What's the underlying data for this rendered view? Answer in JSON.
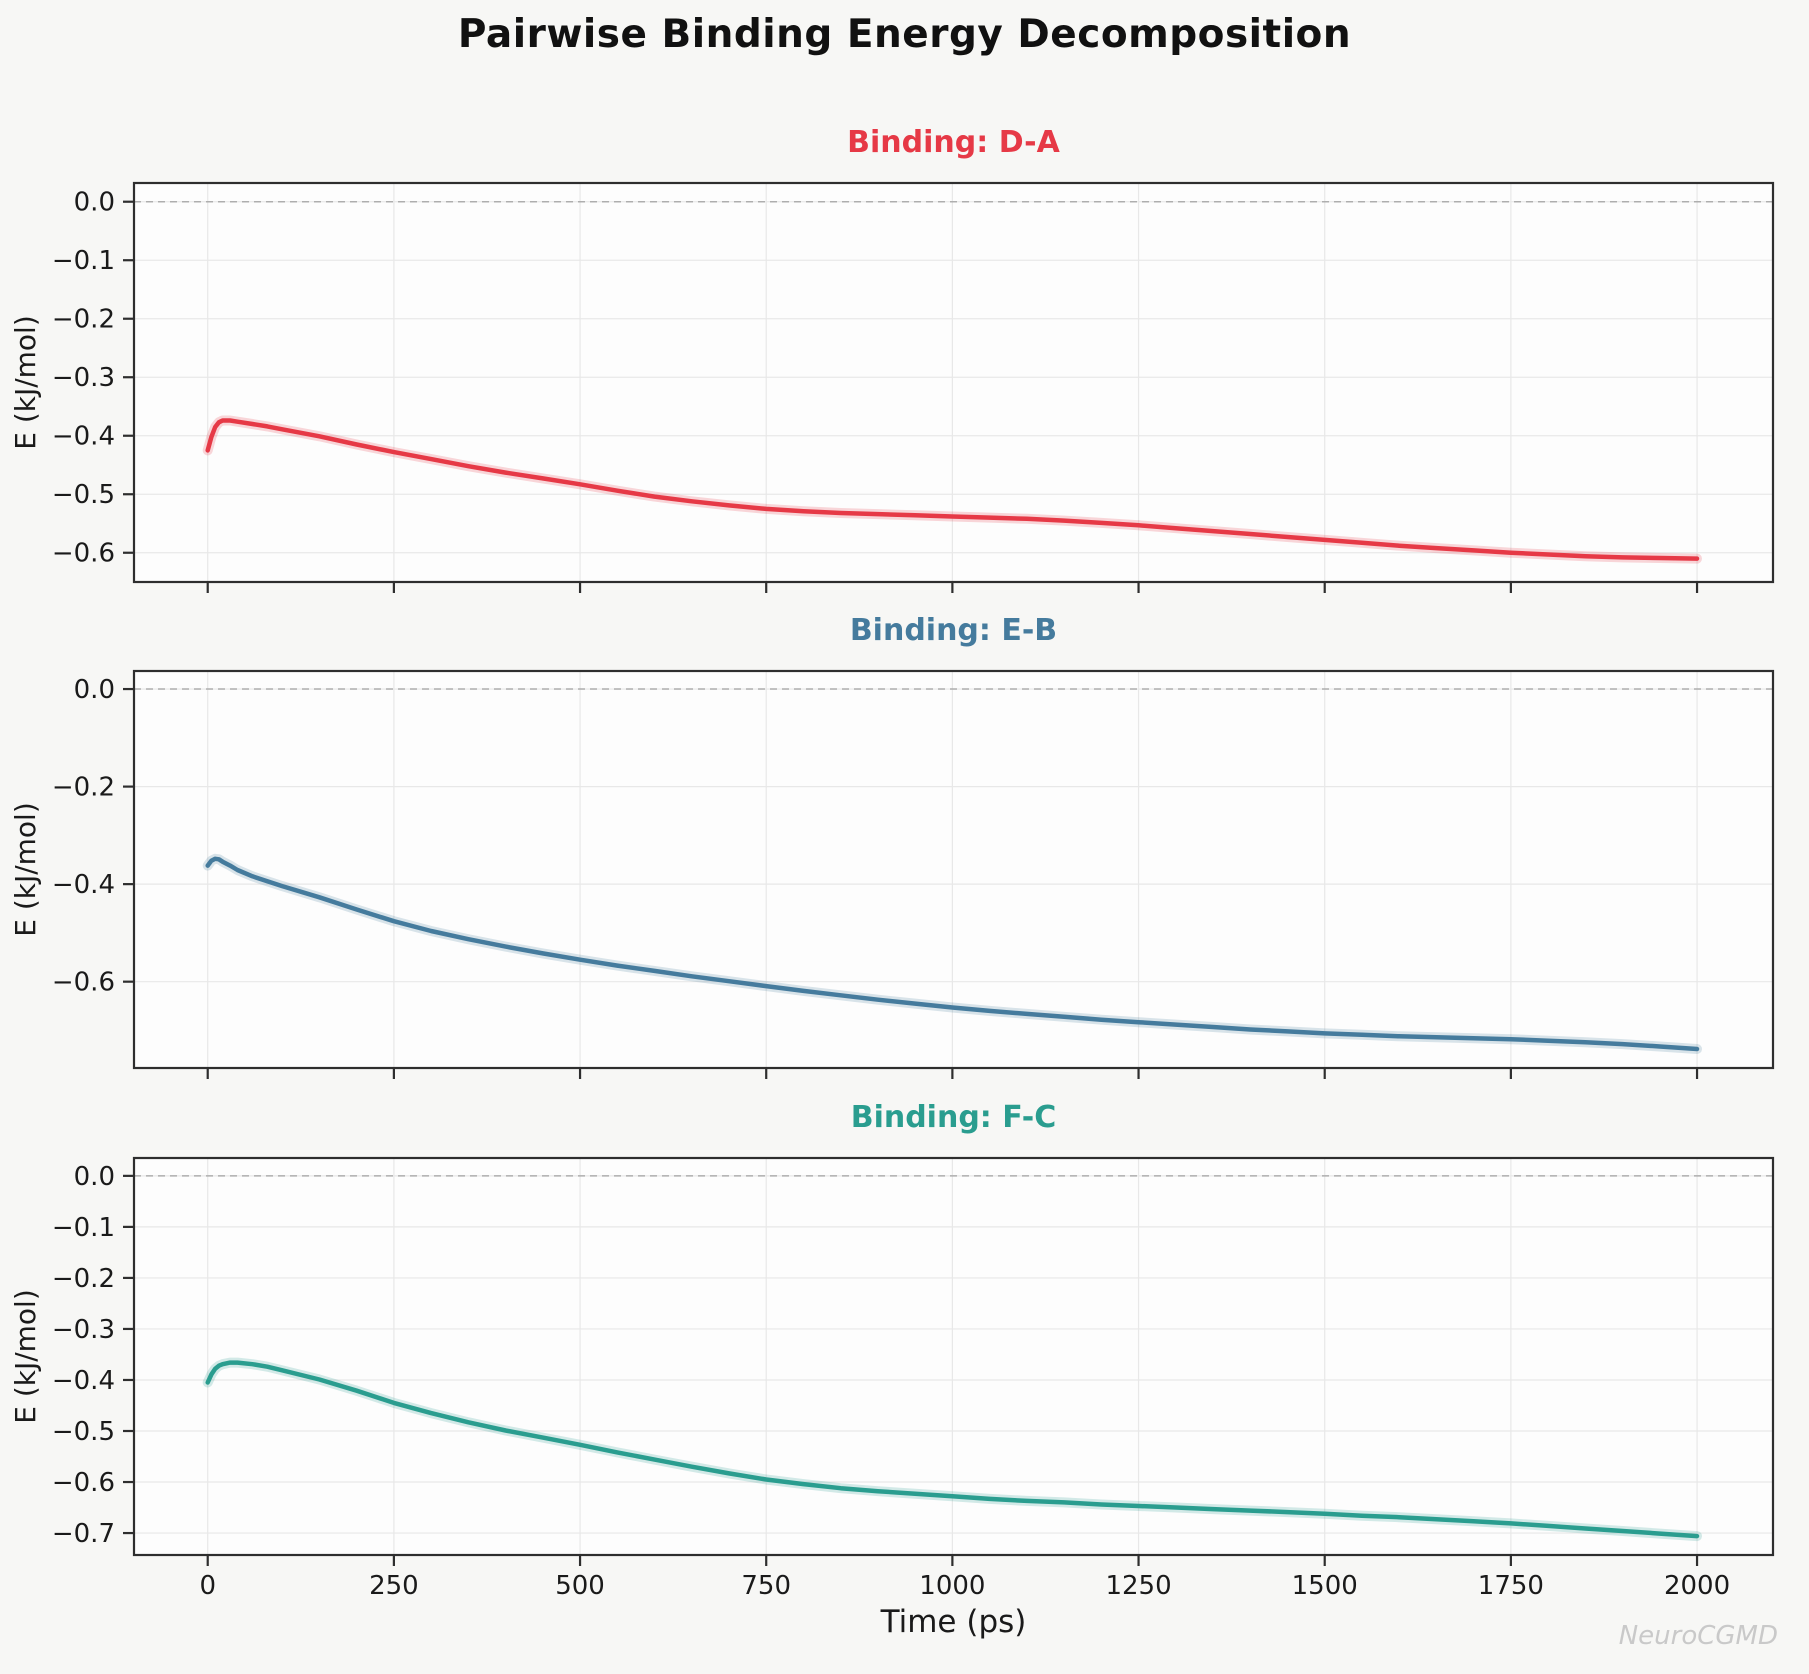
{
  "figure": {
    "title": "Pairwise Binding Energy Decomposition",
    "watermark": "NeuroCGMD",
    "colors": {
      "background": "#f7f7f5",
      "axes_background": "#fdfdfd",
      "grid": "#e8e8e8",
      "spine": "#2e2e2e",
      "zero_line": "#aeaeae",
      "text": "#1a1a1a",
      "watermark": "#c9c9c9"
    }
  },
  "chart_data": {
    "type": "line",
    "xlabel": "Time (ps)",
    "x_ticks": [
      0,
      250,
      500,
      750,
      1000,
      1250,
      1500,
      1750,
      2000
    ],
    "xlim": [
      -99,
      2102
    ],
    "grid": true,
    "legend": "none",
    "zero_reference_line": 0.0,
    "charts": [
      {
        "title": "Binding: D-A",
        "line_color": "#e63946",
        "ylabel": "E (kJ/mol)",
        "ylim": [
          -0.65,
          0.032
        ],
        "y_ticks": [
          0.0,
          -0.1,
          -0.2,
          -0.3,
          -0.4,
          -0.5,
          -0.6
        ],
        "x": [
          0,
          5,
          10,
          15,
          20,
          30,
          40,
          60,
          80,
          100,
          150,
          200,
          250,
          300,
          350,
          400,
          450,
          500,
          550,
          600,
          650,
          700,
          750,
          800,
          850,
          900,
          950,
          1000,
          1050,
          1100,
          1150,
          1200,
          1250,
          1300,
          1350,
          1400,
          1450,
          1500,
          1550,
          1600,
          1650,
          1700,
          1750,
          1800,
          1850,
          1900,
          1950,
          2000
        ],
        "y": [
          -0.425,
          -0.402,
          -0.385,
          -0.377,
          -0.374,
          -0.374,
          -0.376,
          -0.38,
          -0.384,
          -0.389,
          -0.401,
          -0.415,
          -0.428,
          -0.44,
          -0.452,
          -0.463,
          -0.473,
          -0.483,
          -0.494,
          -0.504,
          -0.512,
          -0.519,
          -0.525,
          -0.529,
          -0.532,
          -0.534,
          -0.536,
          -0.538,
          -0.54,
          -0.542,
          -0.545,
          -0.549,
          -0.553,
          -0.558,
          -0.563,
          -0.568,
          -0.573,
          -0.578,
          -0.583,
          -0.588,
          -0.592,
          -0.596,
          -0.6,
          -0.603,
          -0.606,
          -0.608,
          -0.609,
          -0.61
        ]
      },
      {
        "title": "Binding: E-B",
        "line_color": "#457b9d",
        "ylabel": "E (kJ/mol)",
        "ylim": [
          -0.777,
          0.037
        ],
        "y_ticks": [
          0.0,
          -0.2,
          -0.4,
          -0.6
        ],
        "x": [
          0,
          5,
          10,
          15,
          20,
          30,
          40,
          60,
          80,
          100,
          150,
          200,
          250,
          300,
          350,
          400,
          450,
          500,
          550,
          600,
          650,
          700,
          750,
          800,
          850,
          900,
          950,
          1000,
          1050,
          1100,
          1150,
          1200,
          1250,
          1300,
          1350,
          1400,
          1450,
          1500,
          1550,
          1600,
          1650,
          1700,
          1750,
          1800,
          1850,
          1900,
          1950,
          2000
        ],
        "y": [
          -0.362,
          -0.352,
          -0.348,
          -0.349,
          -0.354,
          -0.362,
          -0.371,
          -0.384,
          -0.394,
          -0.404,
          -0.427,
          -0.452,
          -0.476,
          -0.496,
          -0.513,
          -0.528,
          -0.542,
          -0.555,
          -0.567,
          -0.578,
          -0.589,
          -0.599,
          -0.609,
          -0.619,
          -0.628,
          -0.637,
          -0.645,
          -0.653,
          -0.66,
          -0.666,
          -0.672,
          -0.678,
          -0.683,
          -0.688,
          -0.693,
          -0.698,
          -0.702,
          -0.706,
          -0.709,
          -0.712,
          -0.714,
          -0.716,
          -0.718,
          -0.721,
          -0.724,
          -0.728,
          -0.733,
          -0.738
        ]
      },
      {
        "title": "Binding: F-C",
        "line_color": "#2a9d8f",
        "ylabel": "E (kJ/mol)",
        "ylim": [
          -0.743,
          0.035
        ],
        "y_ticks": [
          0.0,
          -0.1,
          -0.2,
          -0.3,
          -0.4,
          -0.5,
          -0.6,
          -0.7
        ],
        "x": [
          0,
          5,
          10,
          15,
          20,
          30,
          40,
          60,
          80,
          100,
          150,
          200,
          250,
          300,
          350,
          400,
          450,
          500,
          550,
          600,
          650,
          700,
          750,
          800,
          850,
          900,
          950,
          1000,
          1050,
          1100,
          1150,
          1200,
          1250,
          1300,
          1350,
          1400,
          1450,
          1500,
          1550,
          1600,
          1650,
          1700,
          1750,
          1800,
          1850,
          1900,
          1950,
          2000
        ],
        "y": [
          -0.405,
          -0.389,
          -0.378,
          -0.372,
          -0.369,
          -0.366,
          -0.366,
          -0.369,
          -0.374,
          -0.381,
          -0.399,
          -0.421,
          -0.445,
          -0.465,
          -0.483,
          -0.499,
          -0.513,
          -0.527,
          -0.542,
          -0.556,
          -0.57,
          -0.583,
          -0.595,
          -0.604,
          -0.612,
          -0.618,
          -0.623,
          -0.628,
          -0.633,
          -0.637,
          -0.64,
          -0.644,
          -0.647,
          -0.65,
          -0.653,
          -0.656,
          -0.659,
          -0.662,
          -0.666,
          -0.669,
          -0.673,
          -0.677,
          -0.681,
          -0.686,
          -0.691,
          -0.696,
          -0.701,
          -0.706
        ]
      }
    ]
  }
}
